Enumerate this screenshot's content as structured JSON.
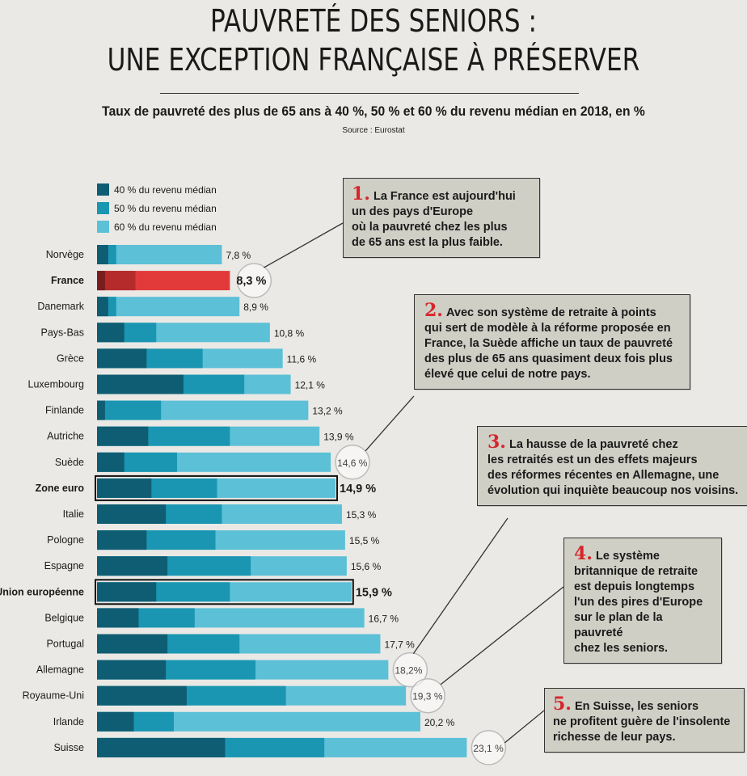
{
  "header": {
    "title_line1": "PAUVRETÉ DES SENIORS :",
    "title_line2": "UNE EXCEPTION FRANÇAISE À PRÉSERVER",
    "subtitle": "Taux de pauvreté des plus de 65 ans à 40 %, 50 % et 60 % du revenu médian en 2018, en %",
    "source": "Source : Eurostat"
  },
  "colors": {
    "s40": "#0f5d73",
    "s50": "#1a96b2",
    "s60": "#5cc0d7",
    "france40": "#7a1d1c",
    "france50": "#b52b2b",
    "france60": "#e23a3a",
    "note_bg": "#cfcfc5",
    "accent_red": "#d6262c"
  },
  "chart_data": {
    "type": "bar",
    "orientation": "horizontal",
    "stacked_overlapping": true,
    "categories": [
      "Norvège",
      "France",
      "Danemark",
      "Pays-Bas",
      "Grèce",
      "Luxembourg",
      "Finlande",
      "Autriche",
      "Suède",
      "Zone euro",
      "Italie",
      "Pologne",
      "Espagne",
      "Union européenne",
      "Belgique",
      "Portugal",
      "Allemagne",
      "Royaume-Uni",
      "Irlande",
      "Suisse"
    ],
    "value_labels": [
      "7,8 %",
      "8,3 %",
      "8,9 %",
      "10,8 %",
      "11,6 %",
      "12,1 %",
      "13,2 %",
      "13,9 %",
      "14,6 %",
      "14,9 %",
      "15,3 %",
      "15,5 %",
      "15,6 %",
      "15,9 %",
      "16,7 %",
      "17,7 %",
      "18,2%",
      "19,3 %",
      "20,2 %",
      "23,1 %"
    ],
    "series": [
      {
        "name": "40 % du revenu médian",
        "values": [
          0.7,
          0.5,
          0.7,
          1.7,
          3.1,
          5.4,
          0.5,
          3.2,
          1.7,
          3.4,
          4.3,
          3.1,
          4.4,
          3.7,
          2.6,
          4.4,
          4.3,
          5.6,
          2.3,
          8.0
        ]
      },
      {
        "name": "50 % du revenu médian",
        "values": [
          1.2,
          2.4,
          1.2,
          3.7,
          6.6,
          9.2,
          4.0,
          8.3,
          5.0,
          7.5,
          7.8,
          7.4,
          9.6,
          8.3,
          6.1,
          8.9,
          9.9,
          11.8,
          4.8,
          14.2
        ]
      },
      {
        "name": "60 % du revenu médian",
        "values": [
          7.8,
          8.3,
          8.9,
          10.8,
          11.6,
          12.1,
          13.2,
          13.9,
          14.6,
          14.9,
          15.3,
          15.5,
          15.6,
          15.9,
          16.7,
          17.7,
          18.2,
          19.3,
          20.2,
          23.1
        ]
      }
    ],
    "highlighted": [
      "France"
    ],
    "boxed": [
      "Zone euro",
      "Union européenne"
    ],
    "circled": [
      "France",
      "Suède",
      "Allemagne",
      "Royaume-Uni",
      "Suisse"
    ],
    "bold_labels": [
      "France",
      "Zone euro",
      "Union européenne"
    ],
    "legend": [
      "40 % du revenu médian",
      "50 % du revenu médian",
      "60 % du revenu médian"
    ],
    "legend_position": "top-left",
    "grid": false
  },
  "notes": [
    {
      "num": "1.",
      "text": "La France est aujourd'hui\nun des pays d'Europe\noù la pauvreté chez les plus\nde 65 ans est la plus faible."
    },
    {
      "num": "2.",
      "text": "Avec son système de retraite à points\nqui sert de modèle à la réforme proposée en\nFrance, la Suède affiche un taux de pauvreté\ndes plus de 65 ans quasiment deux fois plus\nélevé que celui de notre pays."
    },
    {
      "num": "3.",
      "text": "La hausse de la pauvreté chez\nles retraités est un des effets majeurs\ndes réformes récentes en Allemagne, une\névolution qui inquiète beaucoup nos voisins."
    },
    {
      "num": "4.",
      "text": "Le système\nbritannique de retraite\nest depuis longtemps\nl'un des pires d'Europe\nsur le plan de la pauvreté\nchez les seniors."
    },
    {
      "num": "5.",
      "text": "En Suisse, les seniors\nne profitent guère de l'insolente\nrichesse de leur pays."
    }
  ]
}
